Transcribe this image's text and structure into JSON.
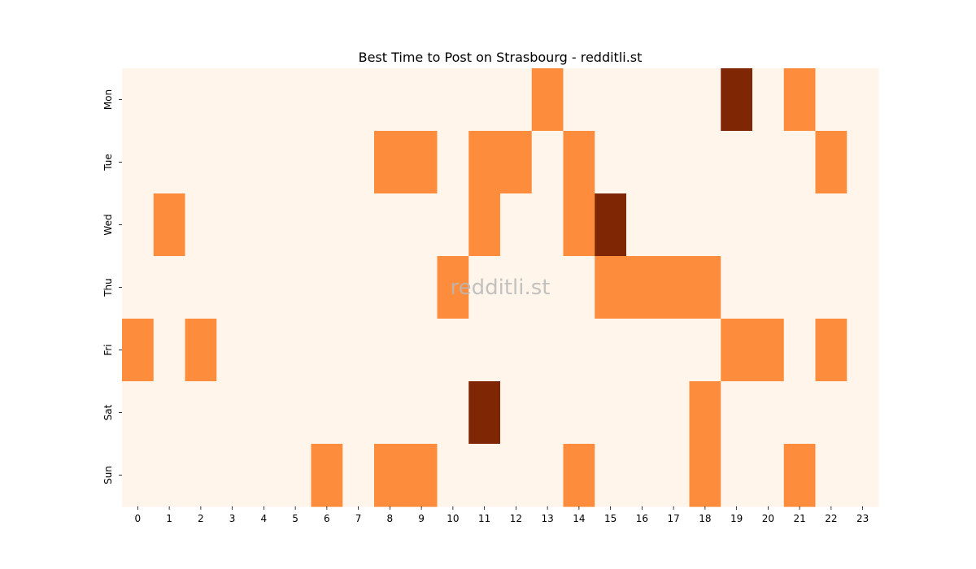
{
  "chart_data": {
    "type": "heatmap",
    "title": "Best Time to Post on Strasbourg - redditli.st",
    "watermark": "redditli.st",
    "xlabel": "",
    "ylabel": "",
    "x_categories": [
      "0",
      "1",
      "2",
      "3",
      "4",
      "5",
      "6",
      "7",
      "8",
      "9",
      "10",
      "11",
      "12",
      "13",
      "14",
      "15",
      "16",
      "17",
      "18",
      "19",
      "20",
      "21",
      "22",
      "23"
    ],
    "y_categories": [
      "Mon",
      "Tue",
      "Wed",
      "Thu",
      "Fri",
      "Sat",
      "Sun"
    ],
    "colormap": "Oranges",
    "colors": {
      "low": "#fff5eb",
      "mid": "#fd8d3c",
      "high": "#7f2704"
    },
    "value_range": [
      0,
      2
    ],
    "values": [
      [
        0,
        0,
        0,
        0,
        0,
        0,
        0,
        0,
        0,
        0,
        0,
        0,
        0,
        1,
        0,
        0,
        0,
        0,
        0,
        2,
        0,
        1,
        0,
        0
      ],
      [
        0,
        0,
        0,
        0,
        0,
        0,
        0,
        0,
        1,
        1,
        0,
        1,
        1,
        0,
        1,
        0,
        0,
        0,
        0,
        0,
        0,
        0,
        1,
        0
      ],
      [
        0,
        1,
        0,
        0,
        0,
        0,
        0,
        0,
        0,
        0,
        0,
        1,
        0,
        0,
        1,
        2,
        0,
        0,
        0,
        0,
        0,
        0,
        0,
        0
      ],
      [
        0,
        0,
        0,
        0,
        0,
        0,
        0,
        0,
        0,
        0,
        1,
        0,
        0,
        0,
        0,
        1,
        1,
        1,
        1,
        0,
        0,
        0,
        0,
        0
      ],
      [
        1,
        0,
        1,
        0,
        0,
        0,
        0,
        0,
        0,
        0,
        0,
        0,
        0,
        0,
        0,
        0,
        0,
        0,
        0,
        1,
        1,
        0,
        1,
        0
      ],
      [
        0,
        0,
        0,
        0,
        0,
        0,
        0,
        0,
        0,
        0,
        0,
        2,
        0,
        0,
        0,
        0,
        0,
        0,
        1,
        0,
        0,
        0,
        0,
        0
      ],
      [
        0,
        0,
        0,
        0,
        0,
        0,
        1,
        0,
        1,
        1,
        0,
        0,
        0,
        0,
        1,
        0,
        0,
        0,
        1,
        0,
        0,
        1,
        0,
        0
      ]
    ],
    "grid": false,
    "legend": "none"
  }
}
